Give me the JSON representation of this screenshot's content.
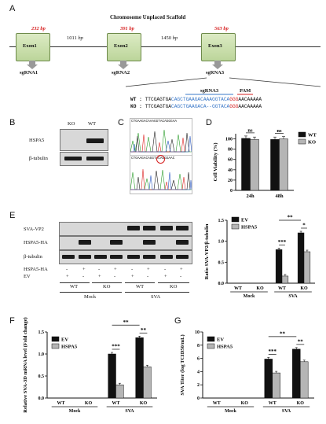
{
  "panelA": {
    "label": "A",
    "title": "Chromosome Unplaced Scaffold",
    "exons": [
      {
        "size": "232",
        "name": "Exon1",
        "sg": "sgRNA1"
      },
      {
        "size": "391",
        "name": "Exon2",
        "sg": "sgRNA2"
      },
      {
        "size": "563",
        "name": "Exon3",
        "sg": "sgRNA3"
      }
    ],
    "bp_unit": "bp",
    "gaps": [
      "1011",
      "1450"
    ],
    "seq_header_sg": "sgRNA3",
    "seq_header_pam": "PAM",
    "wt_label": "WT :",
    "ko_label": "KO :",
    "wt_seq": [
      "TTCGAGTGA",
      "CAGCTGAAGACAAAGGTACA",
      "GGG",
      "AACAAAAA"
    ],
    "ko_seq": [
      "TTCGAGTGA",
      "CAGCTGAAGACA--GGTACA",
      "GGG",
      "AACAAAAA"
    ],
    "colors": {
      "exon": "#c8dfa8",
      "red": "#d61f1f",
      "blue": "#3a78c8"
    }
  },
  "panelB": {
    "label": "B",
    "cols": [
      "KO",
      "WT"
    ],
    "rows": [
      "HSPA5",
      "β-tubulin"
    ]
  },
  "panelC": {
    "label": "C",
    "seq_top": "CTGAAGACAAAGGTACAGGGAA",
    "seq_bot": "CTGAAGACAGGTACAGGGAAC"
  },
  "panelD": {
    "label": "D",
    "chart_data": {
      "type": "bar",
      "ylabel": "Cell Viability (%)",
      "categories": [
        "24h",
        "48h"
      ],
      "ylim": [
        0,
        110
      ],
      "yticks": [
        "0",
        "20",
        "40",
        "60",
        "80",
        "100"
      ],
      "series": [
        {
          "name": "WT",
          "values": [
            101,
            99
          ],
          "color": "#111111"
        },
        {
          "name": "KO",
          "values": [
            99,
            100
          ],
          "color": "#b5b5b5"
        }
      ],
      "annotations": [
        "ns",
        "ns"
      ]
    }
  },
  "panelE": {
    "label": "E",
    "rows": [
      "SVA-VP2",
      "HSPA5-HA",
      "β-tubulin"
    ],
    "cond_rows": [
      "HSPA5-HA",
      "EV"
    ],
    "signs_ha": [
      "-",
      "+",
      "-",
      "+",
      "-",
      "+",
      "-",
      "+"
    ],
    "signs_ev": [
      "+",
      "-",
      "+",
      "-",
      "+",
      "-",
      "+",
      "-"
    ],
    "geno": [
      "WT",
      "KO",
      "WT",
      "KO"
    ],
    "groups": [
      "Mock",
      "SVA"
    ],
    "chart_data": {
      "type": "bar",
      "ylabel": "Ratio SVA-VP2/β-tubulin",
      "categories": [
        "WT",
        "KO",
        "WT",
        "KO"
      ],
      "groups": [
        "Mock",
        "SVA"
      ],
      "ylim": [
        0,
        1.5
      ],
      "yticks": [
        "0.0",
        "0.5",
        "1.0",
        "1.5"
      ],
      "series": [
        {
          "name": "EV",
          "values": [
            0,
            0,
            0.8,
            1.2
          ],
          "color": "#111111"
        },
        {
          "name": "HSPA5",
          "values": [
            0,
            0,
            0.17,
            0.75
          ],
          "color": "#b5b5b5"
        }
      ],
      "annotations": [
        "***",
        "*",
        "**"
      ]
    }
  },
  "panelF": {
    "label": "F",
    "chart_data": {
      "type": "bar",
      "ylabel": "Relative SVA-3D mRNA level (Fold change)",
      "categories": [
        "WT",
        "KO",
        "WT",
        "KO"
      ],
      "groups": [
        "Mock",
        "SVA"
      ],
      "ylim": [
        0,
        1.5
      ],
      "yticks": [
        "0.0",
        "0.5",
        "1.0",
        "1.5"
      ],
      "series": [
        {
          "name": "EV",
          "values": [
            0,
            0,
            1.0,
            1.37
          ],
          "color": "#111111"
        },
        {
          "name": "HSPA5",
          "values": [
            0,
            0,
            0.3,
            0.71
          ],
          "color": "#b5b5b5"
        }
      ],
      "annotations": [
        "***",
        "**",
        "**"
      ]
    }
  },
  "panelG": {
    "label": "G",
    "chart_data": {
      "type": "bar",
      "ylabel": "SVA Titer (log TCID50/mL)",
      "categories": [
        "WT",
        "KO",
        "WT",
        "KO"
      ],
      "groups": [
        "Mock",
        "SVA"
      ],
      "ylim": [
        0,
        10
      ],
      "yticks": [
        "0",
        "2",
        "4",
        "6",
        "8",
        "10"
      ],
      "series": [
        {
          "name": "EV",
          "values": [
            0,
            0,
            5.9,
            7.4
          ],
          "color": "#111111"
        },
        {
          "name": "HSPA5",
          "values": [
            0,
            0,
            3.8,
            5.5
          ],
          "color": "#b5b5b5"
        }
      ],
      "annotations": [
        "***",
        "**",
        "**"
      ]
    }
  }
}
